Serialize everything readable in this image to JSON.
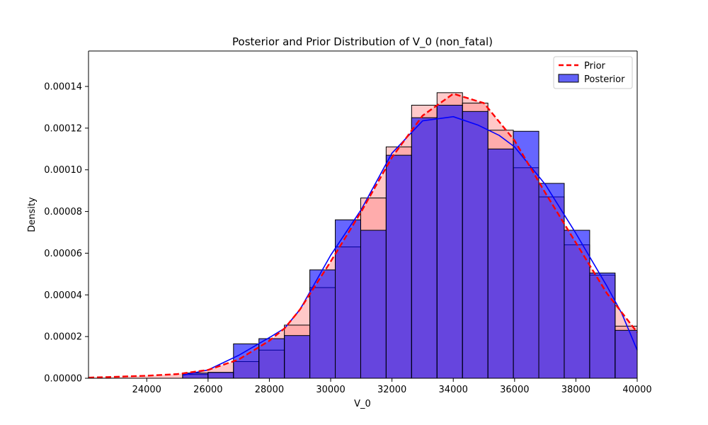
{
  "chart_data": {
    "type": "histogram",
    "title": "Posterior and Prior Distribution of V_0 (non_fatal)",
    "xlabel": "V_0",
    "ylabel": "Density",
    "xlim": [
      22100,
      40000
    ],
    "ylim": [
      0,
      0.000157
    ],
    "xticks": [
      24000,
      26000,
      28000,
      30000,
      32000,
      34000,
      36000,
      38000,
      40000
    ],
    "xtick_labels": [
      "24000",
      "26000",
      "28000",
      "30000",
      "32000",
      "34000",
      "36000",
      "38000",
      "40000"
    ],
    "yticks": [
      0,
      2e-05,
      4e-05,
      6e-05,
      8e-05,
      0.0001,
      0.00012,
      0.00014
    ],
    "ytick_labels": [
      "0.00000",
      "0.00002",
      "0.00004",
      "0.00006",
      "0.00008",
      "0.00010",
      "0.00012",
      "0.00014"
    ],
    "grid": false,
    "legend_position": "upper right",
    "colors": {
      "prior_line": "#ff0000",
      "prior_fill": "#ffc8c8",
      "posterior_bar": "#6161f7",
      "overlap_bar": "#8051cf",
      "posterior_kde": "#0000ff",
      "bar_edge": "#000000"
    },
    "legend": [
      {
        "label": "Prior",
        "style": "dashed-line"
      },
      {
        "label": "Posterior",
        "style": "bar"
      }
    ],
    "posterior_histogram": {
      "bin_edges": [
        25170,
        26000,
        26830,
        27660,
        28490,
        29320,
        30150,
        30980,
        31810,
        32640,
        33470,
        34300,
        35130,
        35960,
        36790,
        37620,
        38450,
        39280,
        40000
      ],
      "density": [
        2.5e-06,
        2.8e-06,
        1.65e-05,
        1.9e-05,
        2.05e-05,
        5.2e-05,
        7.6e-05,
        7.1e-05,
        0.000107,
        0.000125,
        0.000131,
        0.000128,
        0.00011,
        0.0001185,
        9.35e-05,
        7.1e-05,
        5.05e-05,
        2.3e-05
      ]
    },
    "prior_histogram": {
      "bin_edges": [
        25170,
        26000,
        26830,
        27660,
        28490,
        29320,
        30150,
        30980,
        31810,
        32640,
        33470,
        34300,
        35130,
        35960,
        36790,
        37620,
        38450,
        39280,
        40000
      ],
      "density": [
        1.8e-06,
        2.8e-06,
        8e-06,
        1.35e-05,
        2.55e-05,
        4.35e-05,
        6.3e-05,
        8.65e-05,
        0.000111,
        0.000131,
        0.000137,
        0.000132,
        0.000119,
        0.000101,
        8.7e-05,
        6.4e-05,
        4.95e-05,
        2.5e-05
      ]
    },
    "prior_kde": {
      "x": [
        22100,
        23000,
        24000,
        25000,
        26000,
        27000,
        28000,
        28500,
        29000,
        30000,
        31000,
        32000,
        33000,
        34000,
        35000,
        36000,
        37000,
        38000,
        39000,
        40000
      ],
      "y": [
        3e-07,
        7e-07,
        1.2e-06,
        2e-06,
        4e-06,
        9e-06,
        1.8e-05,
        2.4e-05,
        3.3e-05,
        5.6e-05,
        8e-05,
        0.000106,
        0.000126,
        0.0001365,
        0.000132,
        0.000114,
        8.9e-05,
        6.5e-05,
        4.1e-05,
        2.2e-05
      ]
    },
    "posterior_kde": {
      "x": [
        25200,
        26000,
        27000,
        28000,
        28500,
        29000,
        30000,
        31000,
        32000,
        33000,
        34000,
        34800,
        35500,
        36000,
        37000,
        38000,
        39000,
        39500,
        40000
      ],
      "y": [
        1.5e-06,
        4e-06,
        1.1e-05,
        1.95e-05,
        2.4e-05,
        3.3e-05,
        5.9e-05,
        8.1e-05,
        0.000108,
        0.0001235,
        0.0001255,
        0.0001215,
        0.0001165,
        0.000111,
        9.3e-05,
        6.95e-05,
        4.45e-05,
        3.1e-05,
        1.35e-05
      ]
    }
  }
}
